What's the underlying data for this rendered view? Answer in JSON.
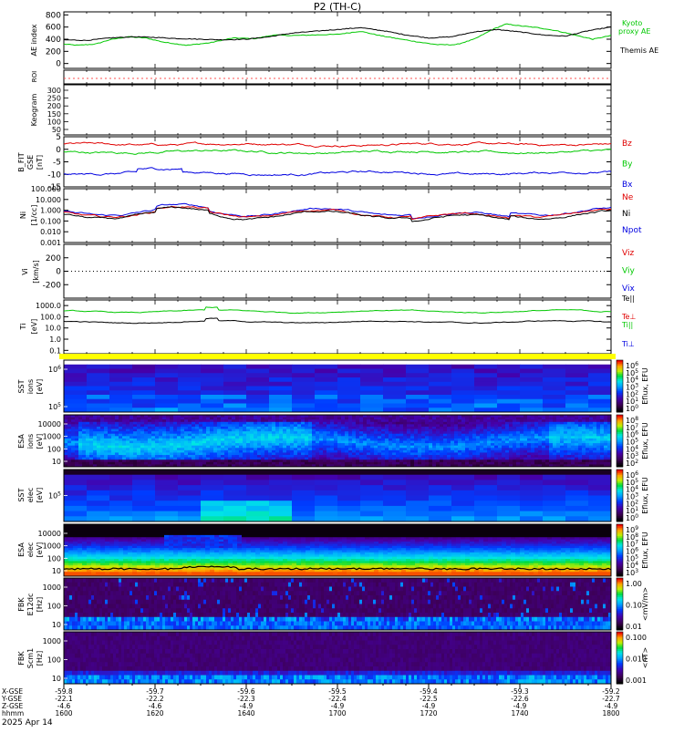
{
  "title": "P2 (TH-C)",
  "date": "2025 Apr 14",
  "colors": {
    "black": "#000000",
    "red": "#e00000",
    "green": "#00c800",
    "blue": "#0000e0",
    "yellow": "#ffff00",
    "dotred": "#ff5050"
  },
  "chart_data": [
    {
      "type": "line",
      "panel": "ae",
      "ylabel": "AE index",
      "yticks": [
        "800",
        "600",
        "400",
        "200",
        "0"
      ],
      "ylim": [
        -80,
        850
      ],
      "legend": [
        "Kyoto proxy AE",
        "Themis AE"
      ],
      "series": [
        {
          "name": "Kyoto proxy AE",
          "color": "green",
          "x": [
            1600,
            1603,
            1607,
            1610,
            1614,
            1618,
            1622,
            1627,
            1632,
            1637,
            1642,
            1646,
            1650,
            1655,
            1700,
            1705,
            1710,
            1714,
            1718,
            1722,
            1726,
            1730,
            1734,
            1737,
            1740,
            1744,
            1748,
            1752,
            1756,
            1800
          ],
          "y": [
            320,
            300,
            320,
            390,
            440,
            420,
            350,
            300,
            340,
            420,
            410,
            470,
            460,
            470,
            480,
            530,
            450,
            400,
            350,
            310,
            310,
            400,
            560,
            650,
            620,
            590,
            540,
            470,
            400,
            460
          ]
        },
        {
          "name": "Themis AE",
          "color": "black",
          "x": [
            1600,
            1605,
            1610,
            1615,
            1620,
            1625,
            1630,
            1635,
            1640,
            1645,
            1650,
            1655,
            1700,
            1705,
            1710,
            1715,
            1720,
            1725,
            1730,
            1735,
            1740,
            1745,
            1750,
            1755,
            1800
          ],
          "y": [
            390,
            380,
            420,
            440,
            430,
            410,
            400,
            390,
            400,
            440,
            500,
            530,
            560,
            590,
            540,
            470,
            420,
            440,
            520,
            560,
            520,
            470,
            450,
            540,
            600
          ]
        }
      ]
    },
    {
      "type": "line",
      "panel": "keo_roi",
      "ylabel": "ROI",
      "note": "dotted reference line"
    },
    {
      "type": "heatmap",
      "panel": "keogram",
      "ylabel": "Keogram",
      "yticks": [
        "300",
        "250",
        "200",
        "150",
        "100",
        "50"
      ],
      "note": "no data, blank panel"
    },
    {
      "type": "line",
      "panel": "bfield",
      "ylabel": "B_FIT GSE [nT]",
      "yticks": [
        "5",
        "0",
        "-5",
        "-10",
        "-15"
      ],
      "ylim": [
        -15,
        5
      ],
      "legend": [
        "Bz",
        "By",
        "Bx"
      ],
      "series": [
        {
          "name": "Bz",
          "color": "red",
          "base": 2.0,
          "amp": 0.8
        },
        {
          "name": "By",
          "color": "green",
          "base": -1.0,
          "amp": 1.0
        },
        {
          "name": "Bx",
          "color": "blue",
          "base": -9.5,
          "amp": 1.2
        }
      ]
    },
    {
      "type": "line",
      "panel": "density",
      "ylabel": "Ni [1/cc]",
      "log": true,
      "yticks": [
        "100.000",
        "10.000",
        "1.000",
        "0.100",
        "0.010",
        "0.001"
      ],
      "ylim": [
        0.001,
        100
      ],
      "legend": [
        "Ne",
        "Ni",
        "Npot"
      ],
      "series": [
        {
          "name": "Ne",
          "color": "red",
          "base": 0.5
        },
        {
          "name": "Ni",
          "color": "black",
          "base": 0.35
        },
        {
          "name": "Npot",
          "color": "blue",
          "base": 0.7
        }
      ]
    },
    {
      "type": "line",
      "panel": "velocity",
      "ylabel": "Vi [km/s]",
      "yticks": [
        "200",
        "0",
        "-200"
      ],
      "ylim": [
        -400,
        400
      ],
      "legend": [
        "Viz",
        "Viy",
        "Vix"
      ]
    },
    {
      "type": "line",
      "panel": "temperature",
      "ylabel": "Ti [eV]",
      "log": true,
      "yticks": [
        "1000.0",
        "100.0",
        "10.0",
        "1.0",
        "0.1"
      ],
      "ylim": [
        0.05,
        3000
      ],
      "legend": [
        "Te||",
        "Te⊥",
        "Ti||",
        "Ti⊥"
      ],
      "series": [
        {
          "name": "Ti||",
          "color": "green",
          "base": 300
        },
        {
          "name": "Ti",
          "color": "black",
          "base": 35
        }
      ]
    },
    {
      "type": "heatmap",
      "panel": "sst_ion",
      "ylabel": "SST ions [eV]",
      "yticks": [
        "10^6",
        "10^5"
      ],
      "cbar_label": "Eflux, EFU",
      "cbar_ticks": [
        "10^6",
        "10^5",
        "10^4",
        "10^3",
        "10^2",
        "10^1",
        "10^0"
      ]
    },
    {
      "type": "heatmap",
      "panel": "esa_ion",
      "ylabel": "ESA ions [eV]",
      "yticks": [
        "10000",
        "1000",
        "100",
        "10"
      ],
      "cbar_label": "Eflux, EFU",
      "cbar_ticks": [
        "10^8",
        "10^7",
        "10^6",
        "10^5",
        "10^4",
        "10^3",
        "10^2"
      ]
    },
    {
      "type": "heatmap",
      "panel": "sst_elec",
      "ylabel": "SST elec [eV]",
      "yticks": [
        "10^5"
      ],
      "cbar_label": "Eflux, EFU",
      "cbar_ticks": [
        "10^6",
        "10^5",
        "10^4",
        "10^3",
        "10^2",
        "10^1",
        "10^0"
      ]
    },
    {
      "type": "heatmap",
      "panel": "esa_elec",
      "ylabel": "ESA elec [eV]",
      "yticks": [
        "10000",
        "1000",
        "100",
        "10"
      ],
      "cbar_label": "Eflux, EFU",
      "cbar_ticks": [
        "10^9",
        "10^8",
        "10^7",
        "10^6",
        "10^5",
        "10^4",
        "10^3"
      ]
    },
    {
      "type": "heatmap",
      "panel": "fbk_e",
      "ylabel": "FBK E12dc [Hz]",
      "yticks": [
        "1000",
        "100",
        "10"
      ],
      "cbar_label": "<mV/m>",
      "cbar_ticks": [
        "1.00",
        "0.10",
        "0.01"
      ]
    },
    {
      "type": "heatmap",
      "panel": "fbk_b",
      "ylabel": "FBK Scm1 [Hz]",
      "yticks": [
        "1000",
        "100",
        "10"
      ],
      "cbar_label": "<nT>",
      "cbar_ticks": [
        "0.100",
        "0.010",
        "0.001"
      ]
    }
  ],
  "xaxis": {
    "row_labels": [
      "X-GSE",
      "Y-GSE",
      "Z-GSE",
      "hhmm"
    ],
    "columns": [
      {
        "vals": [
          "-59.8",
          "-22.1",
          "-4.6",
          "1600"
        ]
      },
      {
        "vals": [
          "-59.7",
          "-22.2",
          "-4.6",
          "1620"
        ]
      },
      {
        "vals": [
          "-59.6",
          "-22.3",
          "-4.9",
          "1640"
        ]
      },
      {
        "vals": [
          "-59.5",
          "-22.4",
          "-4.9",
          "1700"
        ]
      },
      {
        "vals": [
          "-59.4",
          "-22.5",
          "-4.9",
          "1720"
        ]
      },
      {
        "vals": [
          "-59.3",
          "-22.6",
          "-4.9",
          "1740"
        ]
      },
      {
        "vals": [
          "-59.2",
          "-22.7",
          "-4.9",
          "1800"
        ]
      }
    ]
  }
}
